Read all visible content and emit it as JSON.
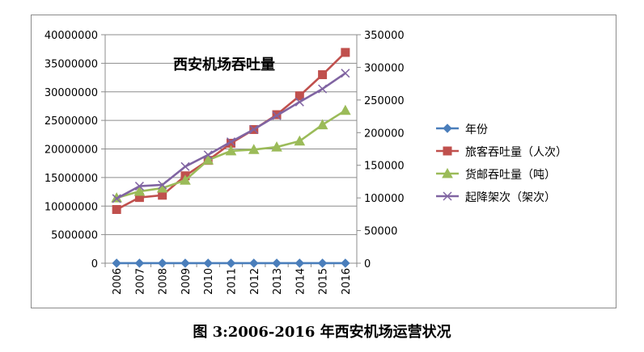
{
  "chart_data": {
    "type": "line",
    "title": "西安机场吞吐量",
    "caption": "图 3:2006-2016 年西安机场运营状况",
    "categories": [
      "2006",
      "2007",
      "2008",
      "2009",
      "2010",
      "2011",
      "2012",
      "2013",
      "2014",
      "2015",
      "2016"
    ],
    "y_left": {
      "range": [
        0,
        40000000
      ],
      "ticks": [
        "0",
        "5000000",
        "10000000",
        "15000000",
        "20000000",
        "25000000",
        "30000000",
        "35000000",
        "40000000"
      ]
    },
    "y_right": {
      "range": [
        0,
        350000
      ],
      "ticks": [
        "0",
        "50000",
        "100000",
        "150000",
        "200000",
        "250000",
        "300000",
        "350000"
      ]
    },
    "grid": true,
    "legend_position": "right",
    "series": [
      {
        "name": "年份",
        "axis": "left",
        "color": "#4a7ebb",
        "marker": "diamond",
        "values": [
          2006,
          2007,
          2008,
          2009,
          2010,
          2011,
          2012,
          2013,
          2014,
          2015,
          2016
        ]
      },
      {
        "name": "旅客吞吐量（人次）",
        "axis": "left",
        "color": "#c0504d",
        "marker": "square",
        "values": [
          9400000,
          11500000,
          11900000,
          15300000,
          18000000,
          21000000,
          23400000,
          26000000,
          29300000,
          33000000,
          36900000
        ]
      },
      {
        "name": "货邮吞吐量（吨）",
        "axis": "right",
        "color": "#9bbb59",
        "marker": "triangle",
        "values": [
          100000,
          110000,
          115000,
          127000,
          158000,
          172000,
          174000,
          178000,
          187000,
          212000,
          234000
        ]
      },
      {
        "name": "起降架次（架次）",
        "axis": "right",
        "color": "#8064a2",
        "marker": "x",
        "values": [
          99000,
          118000,
          120000,
          148000,
          166000,
          186000,
          205000,
          226000,
          247000,
          267000,
          291000
        ]
      }
    ]
  }
}
